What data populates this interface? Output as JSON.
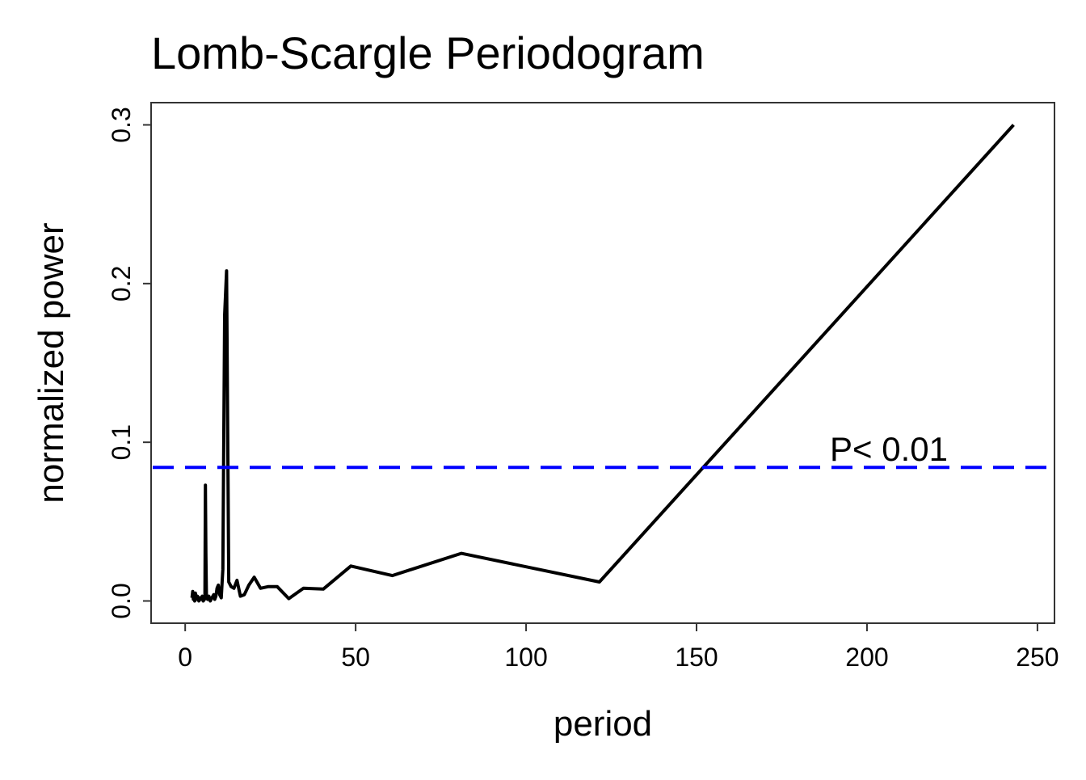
{
  "chart_data": {
    "type": "line",
    "title": "Lomb-Scargle Periodogram",
    "xlabel": "period",
    "ylabel": "normalized power",
    "xlim": [
      -10,
      255
    ],
    "ylim": [
      -0.014,
      0.314
    ],
    "xticks": [
      0,
      50,
      100,
      150,
      200,
      250
    ],
    "xtick_labels": [
      "0",
      "50",
      "100",
      "150",
      "200",
      "250"
    ],
    "yticks": [
      0.0,
      0.1,
      0.2,
      0.3
    ],
    "ytick_labels": [
      "0.0",
      "0.1",
      "0.2",
      "0.3"
    ],
    "grid": false,
    "series": [
      {
        "name": "periodogram",
        "color": "#000000",
        "x": [
          2.0,
          2.2,
          2.4,
          2.6,
          2.8,
          3.0,
          3.3,
          3.6,
          4.0,
          4.3,
          4.6,
          5.0,
          5.3,
          5.65,
          5.79,
          5.93,
          6.08,
          6.23,
          6.57,
          6.94,
          7.36,
          7.84,
          8.38,
          8.68,
          9.0,
          9.35,
          9.72,
          10.13,
          10.57,
          11.05,
          11.57,
          12.15,
          12.79,
          13.5,
          14.29,
          15.19,
          16.2,
          17.36,
          18.69,
          20.25,
          22.09,
          24.3,
          27.0,
          30.38,
          34.71,
          40.5,
          48.6,
          60.75,
          81.0,
          121.5,
          243.0
        ],
        "y": [
          0.002,
          0.006,
          0.001,
          0.004,
          0.0,
          0.005,
          0.001,
          0.003,
          0.0,
          0.002,
          0.001,
          0.003,
          0.0,
          0.001,
          0.002,
          0.073,
          0.03,
          0.002,
          0.001,
          0.003,
          0.0,
          0.002,
          0.004,
          0.001,
          0.003,
          0.008,
          0.01,
          0.004,
          0.002,
          0.02,
          0.18,
          0.208,
          0.012,
          0.009,
          0.008,
          0.013,
          0.003,
          0.004,
          0.01,
          0.015,
          0.008,
          0.009,
          0.009,
          0.0015,
          0.008,
          0.0075,
          0.022,
          0.016,
          0.03,
          0.012,
          0.3
        ]
      }
    ],
    "threshold": {
      "value": 0.0842,
      "label": "P< 0.01",
      "color": "#0000FF"
    }
  }
}
